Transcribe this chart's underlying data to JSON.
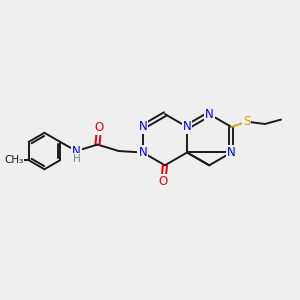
{
  "background_color": "#efefef",
  "bond_color": "#1a1a1a",
  "atom_colors": {
    "N": "#0000ee",
    "O": "#ee0000",
    "S": "#ccaa00",
    "H": "#6a8a8a",
    "C": "#1a1a1a"
  },
  "font_size_atom": 8.5,
  "fig_size": [
    3.0,
    3.0
  ],
  "dpi": 100
}
